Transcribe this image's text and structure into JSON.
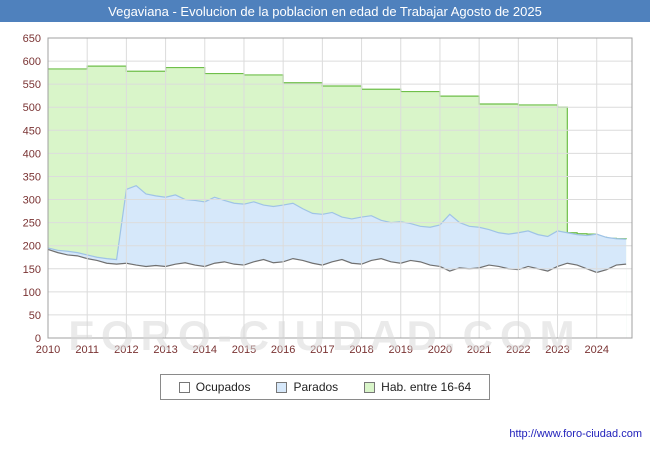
{
  "title": "Vegaviana - Evolucion de la poblacion en edad de Trabajar Agosto de 2025",
  "watermark": "FORO-CIUDAD.COM",
  "footer": {
    "url": "http://www.foro-ciudad.com"
  },
  "colors": {
    "titlebar_bg": "#4f81bd",
    "titlebar_text": "#ffffff",
    "axis_text": "#7a3333",
    "grid": "#dcdcdc",
    "plot_border": "#a0a0a0",
    "watermark": "#d9d9d9",
    "url_text": "#2222bb"
  },
  "chart_data": {
    "type": "area",
    "title": "Vegaviana - Evolucion de la poblacion en edad de Trabajar Agosto de 2025",
    "xlabel": "",
    "ylabel": "",
    "ylim": [
      0,
      650
    ],
    "ytick_step": 50,
    "xlim": [
      2010,
      2024.9
    ],
    "xticks": [
      2010,
      2011,
      2012,
      2013,
      2014,
      2015,
      2016,
      2017,
      2018,
      2019,
      2020,
      2021,
      2022,
      2023,
      2024
    ],
    "grid": true,
    "legend_position": "bottom",
    "x": [
      2010,
      2010.25,
      2010.5,
      2010.75,
      2011,
      2011.25,
      2011.5,
      2011.75,
      2012,
      2012.25,
      2012.5,
      2012.75,
      2013,
      2013.25,
      2013.5,
      2013.75,
      2014,
      2014.25,
      2014.5,
      2014.75,
      2015,
      2015.25,
      2015.5,
      2015.75,
      2016,
      2016.25,
      2016.5,
      2016.75,
      2017,
      2017.25,
      2017.5,
      2017.75,
      2018,
      2018.25,
      2018.5,
      2018.75,
      2019,
      2019.25,
      2019.5,
      2019.75,
      2020,
      2020.25,
      2020.5,
      2020.75,
      2021,
      2021.25,
      2021.5,
      2021.75,
      2022,
      2022.25,
      2022.5,
      2022.75,
      2023,
      2023.25,
      2023.5,
      2023.75,
      2024,
      2024.25,
      2024.5,
      2024.75
    ],
    "series": [
      {
        "name": "Hab. entre 16-64",
        "fill": "#d9f5c9",
        "stroke": "#6fbf4a",
        "step": true,
        "values": [
          583,
          583,
          583,
          583,
          589,
          589,
          589,
          589,
          578,
          578,
          578,
          578,
          586,
          586,
          586,
          586,
          573,
          573,
          573,
          573,
          570,
          570,
          570,
          570,
          553,
          553,
          553,
          553,
          546,
          546,
          546,
          546,
          539,
          539,
          539,
          539,
          534,
          534,
          534,
          534,
          524,
          524,
          524,
          524,
          507,
          507,
          507,
          507,
          505,
          505,
          505,
          505,
          500,
          228,
          226,
          225,
          218,
          216,
          215,
          214
        ]
      },
      {
        "name": "Parados",
        "fill": "#d6e8fa",
        "stroke": "#9fc3e6",
        "step": false,
        "values": [
          195,
          190,
          188,
          185,
          180,
          175,
          172,
          170,
          322,
          330,
          312,
          308,
          305,
          310,
          300,
          298,
          295,
          305,
          298,
          292,
          290,
          295,
          288,
          285,
          288,
          292,
          280,
          270,
          268,
          272,
          262,
          258,
          262,
          265,
          255,
          250,
          252,
          248,
          242,
          240,
          245,
          268,
          250,
          242,
          240,
          235,
          228,
          225,
          228,
          232,
          224,
          220,
          232,
          228,
          224,
          222,
          225,
          218,
          215,
          214
        ]
      },
      {
        "name": "Ocupados",
        "fill": "#ffffff",
        "stroke": "#707070",
        "step": false,
        "values": [
          192,
          185,
          180,
          178,
          172,
          168,
          162,
          160,
          162,
          158,
          155,
          157,
          155,
          160,
          163,
          158,
          155,
          162,
          165,
          160,
          158,
          165,
          170,
          163,
          165,
          172,
          168,
          162,
          158,
          165,
          170,
          162,
          160,
          168,
          172,
          165,
          162,
          168,
          165,
          158,
          155,
          145,
          152,
          150,
          152,
          158,
          155,
          150,
          148,
          155,
          150,
          145,
          155,
          162,
          158,
          150,
          142,
          148,
          158,
          160
        ]
      }
    ],
    "legend": [
      {
        "label": "Ocupados",
        "fill": "#ffffff"
      },
      {
        "label": "Parados",
        "fill": "#d6e8fa"
      },
      {
        "label": "Hab. entre 16-64",
        "fill": "#d9f5c9"
      }
    ]
  }
}
